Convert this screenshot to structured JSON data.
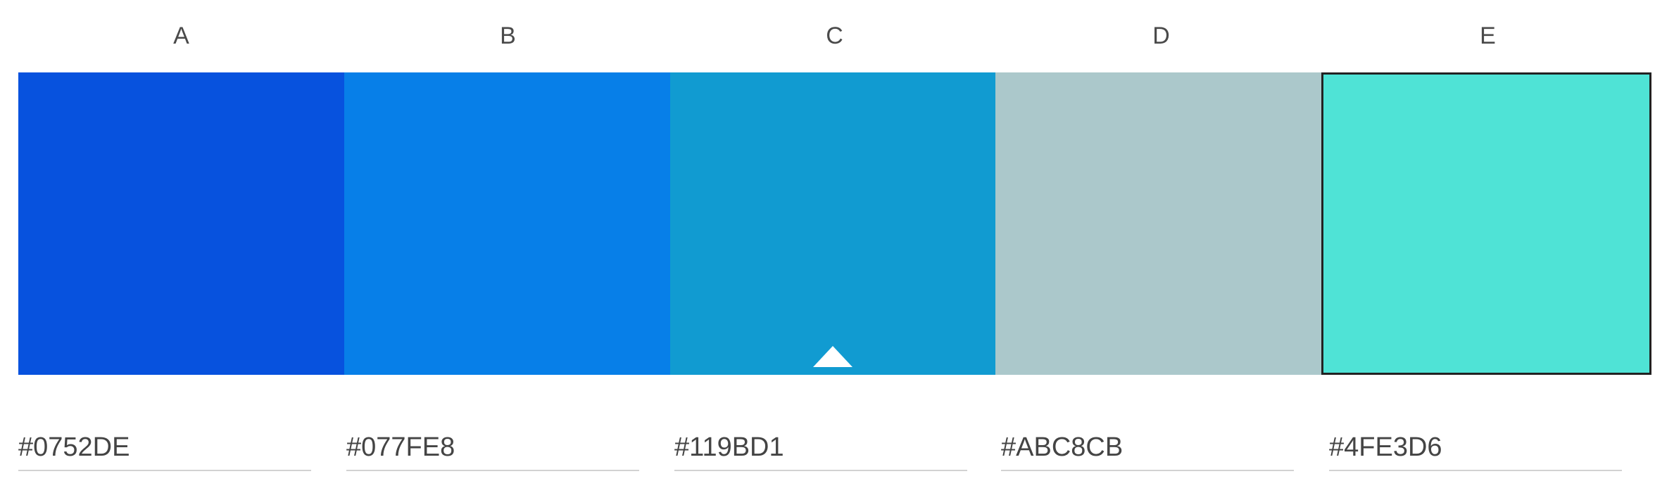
{
  "columns": [
    "A",
    "B",
    "C",
    "D",
    "E"
  ],
  "swatches": [
    {
      "color": "#0752DE",
      "hex": "#0752DE"
    },
    {
      "color": "#077FE8",
      "hex": "#077FE8"
    },
    {
      "color": "#119BD1",
      "hex": "#119BD1"
    },
    {
      "color": "#ABC8CB",
      "hex": "#ABC8CB"
    },
    {
      "color": "#4FE3D6",
      "hex": "#4FE3D6"
    }
  ],
  "base_marker_index": 2,
  "selected_index": 4
}
